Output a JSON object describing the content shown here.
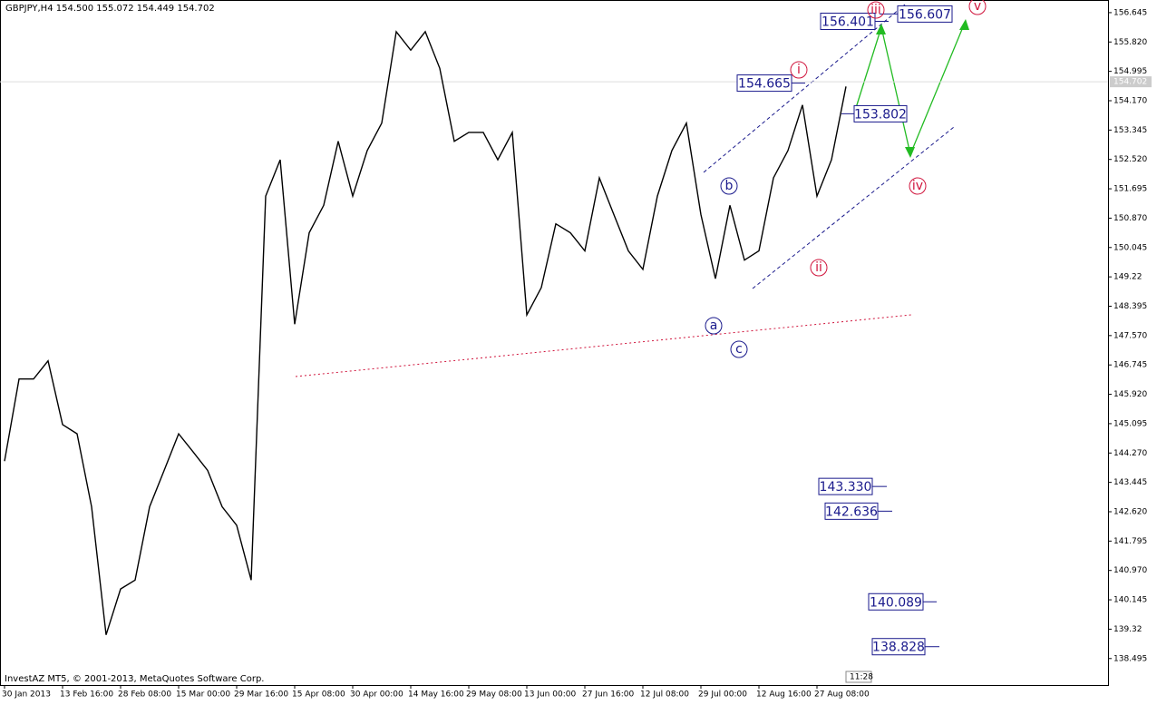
{
  "chart_data": {
    "type": "line",
    "title": "GBPJPY,H4  154.500 155.072 154.449 154.702",
    "footer": "InvestAZ MT5, © 2001-2013, MetaQuotes Software Corp.",
    "time": "11:28",
    "color": "#000000",
    "categories": [
      "30 Jan 2013",
      null,
      null,
      null,
      "13 Feb 16:00",
      null,
      null,
      null,
      "28 Feb 08:00",
      null,
      null,
      null,
      "15 Mar 00:00",
      null,
      null,
      null,
      "29 Mar 16:00",
      null,
      null,
      null,
      "15 Apr 08:00",
      null,
      null,
      null,
      "30 Apr 00:00",
      null,
      null,
      null,
      "14 May 16:00",
      null,
      null,
      null,
      "29 May 08:00",
      null,
      null,
      null,
      "13 Jun 00:00",
      null,
      null,
      null,
      "27 Jun 16:00",
      null,
      null,
      null,
      "12 Jul 08:00",
      null,
      null,
      null,
      "29 Jul 00:00",
      null,
      null,
      null,
      "12 Aug 16:00",
      null,
      null,
      null,
      "27 Aug 08:00",
      null,
      null
    ],
    "values": [
      144.04,
      146.35,
      146.35,
      146.86,
      145.07,
      144.81,
      142.76,
      139.16,
      140.45,
      140.7,
      142.76,
      143.78,
      144.81,
      144.3,
      143.78,
      142.76,
      142.24,
      140.7,
      151.49,
      152.51,
      147.89,
      150.46,
      151.23,
      153.03,
      151.49,
      152.77,
      153.54,
      156.11,
      155.59,
      156.11,
      155.08,
      153.03,
      153.28,
      153.28,
      152.51,
      153.28,
      148.15,
      148.92,
      150.71,
      150.46,
      149.95,
      152.0,
      150.97,
      149.95,
      149.43,
      151.49,
      152.77,
      153.54,
      150.97,
      149.17,
      151.23,
      149.69,
      149.95,
      152.0,
      152.77,
      154.05,
      151.49,
      152.51,
      154.57
    ],
    "ylim": [
      137.75,
      157.0
    ],
    "yticks": [
      156.645,
      {
        "value": 155.82,
        "label": "155.820"
      },
      154.995,
      {
        "value": 154.17,
        "label": "154.170"
      },
      153.345,
      {
        "value": 152.52,
        "label": "152.520"
      },
      151.695,
      {
        "value": 150.87,
        "label": "150.870"
      },
      150.045,
      149.22,
      148.395,
      {
        "value": 147.57,
        "label": "147.570"
      },
      146.745,
      {
        "value": 145.92,
        "label": "145.920"
      },
      145.095,
      {
        "value": 144.27,
        "label": "144.270"
      },
      143.445,
      {
        "value": 142.62,
        "label": "142.620"
      },
      141.795,
      {
        "value": 140.97,
        "label": "140.970"
      },
      140.145,
      139.32,
      138.495
    ],
    "current_price": 154.702,
    "price_levels": [
      156.401,
      156.607,
      154.665,
      153.802,
      143.33,
      142.636,
      140.089,
      138.828
    ],
    "price_level_labels": [
      "156.401",
      "156.607",
      "154.665",
      "153.802",
      "143.330",
      "142.636",
      "140.089",
      "138.828"
    ],
    "wave_labels": [
      "i",
      "ii",
      "iii",
      "iv",
      "v",
      "a",
      "b",
      "c"
    ]
  }
}
